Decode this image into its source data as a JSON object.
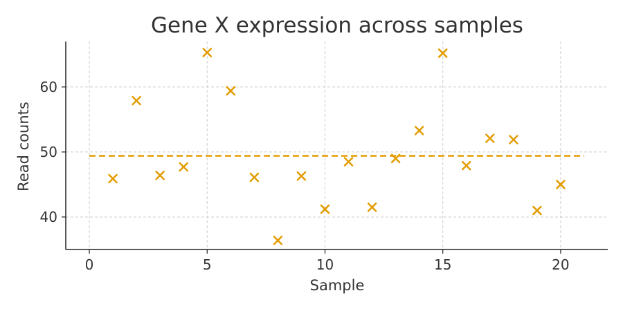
{
  "chart_data": {
    "type": "scatter",
    "title": "Gene X expression across samples",
    "xlabel": "Sample",
    "ylabel": "Read counts",
    "xlim": [
      -1,
      22
    ],
    "ylim": [
      35,
      67
    ],
    "xticks": [
      0,
      5,
      10,
      15,
      20
    ],
    "yticks": [
      40,
      50,
      60
    ],
    "grid": true,
    "marker": "x",
    "color": "#e39c00",
    "x": [
      1,
      2,
      3,
      4,
      5,
      6,
      7,
      8,
      9,
      10,
      11,
      12,
      13,
      14,
      15,
      16,
      17,
      18,
      19,
      20
    ],
    "y": [
      45.9,
      57.9,
      46.4,
      47.7,
      65.3,
      59.4,
      46.1,
      36.4,
      46.3,
      41.2,
      48.5,
      41.5,
      49.0,
      53.3,
      65.2,
      47.9,
      52.1,
      51.9,
      41.0,
      45.0
    ],
    "reference_line": {
      "y": 49.4,
      "x_start": 0,
      "x_end": 21,
      "style": "dashed"
    }
  }
}
